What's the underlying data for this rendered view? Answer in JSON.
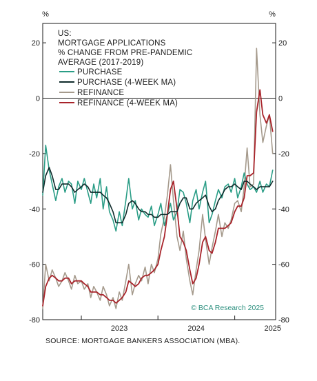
{
  "chart_data": {
    "type": "line",
    "title_lines": [
      "US:",
      "MORTGAGE APPLICATIONS",
      "% CHANGE FROM PRE-PANDEMIC",
      "AVERAGE (2017-2019)"
    ],
    "y_unit_left": "%",
    "y_unit_right": "%",
    "ylim": [
      -80,
      27
    ],
    "y_ticks": [
      20,
      0,
      -20,
      -40,
      -60,
      -80
    ],
    "y_tick_labels": [
      "20",
      "0",
      "-20",
      "-40",
      "-60",
      "-80"
    ],
    "x_ticks": [
      "2023",
      "2024",
      "2025"
    ],
    "x_range": [
      "2022-07-01",
      "2025-07-15"
    ],
    "zero_line": true,
    "grid": false,
    "legend_placement": "top-left",
    "series": [
      {
        "name": "PURCHASE",
        "color": "#2a9d86",
        "x": [
          "2022-07-01",
          "2022-07-15",
          "2022-08-01",
          "2022-08-15",
          "2022-09-01",
          "2022-09-15",
          "2022-10-01",
          "2022-10-15",
          "2022-11-01",
          "2022-11-15",
          "2022-12-01",
          "2022-12-15",
          "2023-01-01",
          "2023-01-15",
          "2023-02-01",
          "2023-02-15",
          "2023-03-01",
          "2023-03-15",
          "2023-04-01",
          "2023-04-15",
          "2023-05-01",
          "2023-05-15",
          "2023-06-01",
          "2023-06-15",
          "2023-07-01",
          "2023-07-15",
          "2023-08-01",
          "2023-08-15",
          "2023-09-01",
          "2023-09-15",
          "2023-10-01",
          "2023-10-15",
          "2023-11-01",
          "2023-11-15",
          "2023-12-01",
          "2023-12-15",
          "2024-01-01",
          "2024-01-15",
          "2024-02-01",
          "2024-02-15",
          "2024-03-01",
          "2024-03-15",
          "2024-04-01",
          "2024-04-15",
          "2024-05-01",
          "2024-05-15",
          "2024-06-01",
          "2024-06-15",
          "2024-07-01",
          "2024-07-15",
          "2024-08-01",
          "2024-08-15",
          "2024-09-01",
          "2024-09-15",
          "2024-10-01",
          "2024-10-15",
          "2024-11-01",
          "2024-11-15",
          "2024-12-01",
          "2024-12-15",
          "2025-01-01",
          "2025-01-15",
          "2025-02-01",
          "2025-02-15",
          "2025-03-01",
          "2025-03-15",
          "2025-04-01",
          "2025-04-15",
          "2025-05-01",
          "2025-05-15",
          "2025-06-01",
          "2025-06-15",
          "2025-07-01"
        ],
        "values": [
          -35,
          -17,
          -26,
          -31,
          -37,
          -32,
          -29,
          -34,
          -30,
          -31,
          -38,
          -30,
          -33,
          -29,
          -34,
          -38,
          -31,
          -36,
          -29,
          -40,
          -32,
          -41,
          -44,
          -48,
          -41,
          -46,
          -37,
          -29,
          -40,
          -37,
          -44,
          -40,
          -42,
          -43,
          -39,
          -46,
          -42,
          -38,
          -46,
          -42,
          -38,
          -44,
          -41,
          -33,
          -34,
          -38,
          -45,
          -37,
          -33,
          -40,
          -34,
          -30,
          -45,
          -42,
          -37,
          -33,
          -36,
          -32,
          -31,
          -34,
          -29,
          -36,
          -32,
          -27,
          -31,
          -33,
          -32,
          -34,
          -30,
          -34,
          -31,
          -32,
          -26
        ]
      },
      {
        "name": "PURCHASE (4-WEEK MA)",
        "color": "#0e2a2a",
        "x": [
          "2022-07-01",
          "2022-07-15",
          "2022-08-01",
          "2022-08-15",
          "2022-09-01",
          "2022-09-15",
          "2022-10-01",
          "2022-10-15",
          "2022-11-01",
          "2022-11-15",
          "2022-12-01",
          "2022-12-15",
          "2023-01-01",
          "2023-01-15",
          "2023-02-01",
          "2023-02-15",
          "2023-03-01",
          "2023-03-15",
          "2023-04-01",
          "2023-04-15",
          "2023-05-01",
          "2023-05-15",
          "2023-06-01",
          "2023-06-15",
          "2023-07-01",
          "2023-07-15",
          "2023-08-01",
          "2023-08-15",
          "2023-09-01",
          "2023-09-15",
          "2023-10-01",
          "2023-10-15",
          "2023-11-01",
          "2023-11-15",
          "2023-12-01",
          "2023-12-15",
          "2024-01-01",
          "2024-01-15",
          "2024-02-01",
          "2024-02-15",
          "2024-03-01",
          "2024-03-15",
          "2024-04-01",
          "2024-04-15",
          "2024-05-01",
          "2024-05-15",
          "2024-06-01",
          "2024-06-15",
          "2024-07-01",
          "2024-07-15",
          "2024-08-01",
          "2024-08-15",
          "2024-09-01",
          "2024-09-15",
          "2024-10-01",
          "2024-10-15",
          "2024-11-01",
          "2024-11-15",
          "2024-12-01",
          "2024-12-15",
          "2025-01-01",
          "2025-01-15",
          "2025-02-01",
          "2025-02-15",
          "2025-03-01",
          "2025-03-15",
          "2025-04-01",
          "2025-04-15",
          "2025-05-01",
          "2025-05-15",
          "2025-06-01",
          "2025-06-15",
          "2025-07-01"
        ],
        "values": [
          -34,
          -28,
          -25,
          -28,
          -33,
          -33,
          -31,
          -31,
          -31,
          -32,
          -34,
          -33,
          -32,
          -31,
          -32,
          -34,
          -34,
          -34,
          -34,
          -35,
          -36,
          -38,
          -41,
          -45,
          -45,
          -45,
          -42,
          -38,
          -37,
          -38,
          -40,
          -41,
          -41,
          -42,
          -42,
          -43,
          -43,
          -42,
          -42,
          -42,
          -41,
          -41,
          -41,
          -38,
          -36,
          -36,
          -40,
          -40,
          -38,
          -37,
          -36,
          -35,
          -39,
          -41,
          -40,
          -37,
          -35,
          -33,
          -32,
          -32,
          -31,
          -32,
          -33,
          -30,
          -30,
          -31,
          -32,
          -33,
          -32,
          -32,
          -32,
          -32,
          -30
        ]
      },
      {
        "name": "REFINANCE",
        "color": "#a59a8c",
        "x": [
          "2022-07-01",
          "2022-07-15",
          "2022-08-01",
          "2022-08-15",
          "2022-09-01",
          "2022-09-15",
          "2022-10-01",
          "2022-10-15",
          "2022-11-01",
          "2022-11-15",
          "2022-12-01",
          "2022-12-15",
          "2023-01-01",
          "2023-01-15",
          "2023-02-01",
          "2023-02-15",
          "2023-03-01",
          "2023-03-15",
          "2023-04-01",
          "2023-04-15",
          "2023-05-01",
          "2023-05-15",
          "2023-06-01",
          "2023-06-15",
          "2023-07-01",
          "2023-07-15",
          "2023-08-01",
          "2023-08-15",
          "2023-09-01",
          "2023-09-15",
          "2023-10-01",
          "2023-10-15",
          "2023-11-01",
          "2023-11-15",
          "2023-12-01",
          "2023-12-15",
          "2024-01-01",
          "2024-01-15",
          "2024-02-01",
          "2024-02-15",
          "2024-03-01",
          "2024-03-15",
          "2024-04-01",
          "2024-04-15",
          "2024-05-01",
          "2024-05-15",
          "2024-06-01",
          "2024-06-15",
          "2024-07-01",
          "2024-07-15",
          "2024-08-01",
          "2024-08-15",
          "2024-09-01",
          "2024-09-15",
          "2024-10-01",
          "2024-10-15",
          "2024-11-01",
          "2024-11-15",
          "2024-12-01",
          "2024-12-15",
          "2025-01-01",
          "2025-01-15",
          "2025-02-01",
          "2025-02-15",
          "2025-03-01",
          "2025-03-15",
          "2025-04-01",
          "2025-04-15",
          "2025-05-01",
          "2025-05-15",
          "2025-06-01",
          "2025-06-15",
          "2025-07-01"
        ],
        "values": [
          -76,
          -60,
          -66,
          -62,
          -65,
          -68,
          -66,
          -63,
          -66,
          -69,
          -64,
          -67,
          -66,
          -69,
          -67,
          -72,
          -68,
          -70,
          -73,
          -68,
          -71,
          -75,
          -72,
          -76,
          -70,
          -73,
          -66,
          -60,
          -71,
          -67,
          -64,
          -66,
          -61,
          -67,
          -60,
          -63,
          -58,
          -49,
          -43,
          -35,
          -24,
          -37,
          -50,
          -55,
          -48,
          -58,
          -66,
          -71,
          -62,
          -55,
          -42,
          -51,
          -60,
          -54,
          -48,
          -42,
          -50,
          -45,
          -47,
          -44,
          -38,
          -37,
          -41,
          -32,
          -18,
          -32,
          -31,
          18,
          -6,
          -16,
          -10,
          -6,
          -20
        ]
      },
      {
        "name": "REFINANCE (4-WEEK MA)",
        "color": "#a8232a",
        "x": [
          "2022-07-01",
          "2022-07-15",
          "2022-08-01",
          "2022-08-15",
          "2022-09-01",
          "2022-09-15",
          "2022-10-01",
          "2022-10-15",
          "2022-11-01",
          "2022-11-15",
          "2022-12-01",
          "2022-12-15",
          "2023-01-01",
          "2023-01-15",
          "2023-02-01",
          "2023-02-15",
          "2023-03-01",
          "2023-03-15",
          "2023-04-01",
          "2023-04-15",
          "2023-05-01",
          "2023-05-15",
          "2023-06-01",
          "2023-06-15",
          "2023-07-01",
          "2023-07-15",
          "2023-08-01",
          "2023-08-15",
          "2023-09-01",
          "2023-09-15",
          "2023-10-01",
          "2023-10-15",
          "2023-11-01",
          "2023-11-15",
          "2023-12-01",
          "2023-12-15",
          "2024-01-01",
          "2024-01-15",
          "2024-02-01",
          "2024-02-15",
          "2024-03-01",
          "2024-03-15",
          "2024-04-01",
          "2024-04-15",
          "2024-05-01",
          "2024-05-15",
          "2024-06-01",
          "2024-06-15",
          "2024-07-01",
          "2024-07-15",
          "2024-08-01",
          "2024-08-15",
          "2024-09-01",
          "2024-09-15",
          "2024-10-01",
          "2024-10-15",
          "2024-11-01",
          "2024-11-15",
          "2024-12-01",
          "2024-12-15",
          "2025-01-01",
          "2025-01-15",
          "2025-02-01",
          "2025-02-15",
          "2025-03-01",
          "2025-03-15",
          "2025-04-01",
          "2025-04-15",
          "2025-05-01",
          "2025-05-15",
          "2025-06-01",
          "2025-06-15",
          "2025-07-01"
        ],
        "values": [
          -75,
          -68,
          -65,
          -64,
          -65,
          -66,
          -66,
          -65,
          -65,
          -67,
          -66,
          -66,
          -66,
          -67,
          -68,
          -70,
          -70,
          -70,
          -71,
          -71,
          -72,
          -73,
          -73,
          -74,
          -73,
          -72,
          -70,
          -66,
          -67,
          -68,
          -67,
          -65,
          -64,
          -64,
          -63,
          -62,
          -60,
          -55,
          -50,
          -42,
          -33,
          -30,
          -40,
          -50,
          -52,
          -55,
          -62,
          -67,
          -65,
          -60,
          -52,
          -50,
          -55,
          -56,
          -52,
          -47,
          -47,
          -47,
          -46,
          -45,
          -41,
          -39,
          -39,
          -36,
          -28,
          -28,
          -27,
          -5,
          3,
          -6,
          -9,
          -6,
          -12
        ]
      }
    ],
    "annotation": "© BCA Research 2025",
    "source": "SOURCE: MORTGAGE BANKERS ASSOCIATION (MBA)."
  }
}
